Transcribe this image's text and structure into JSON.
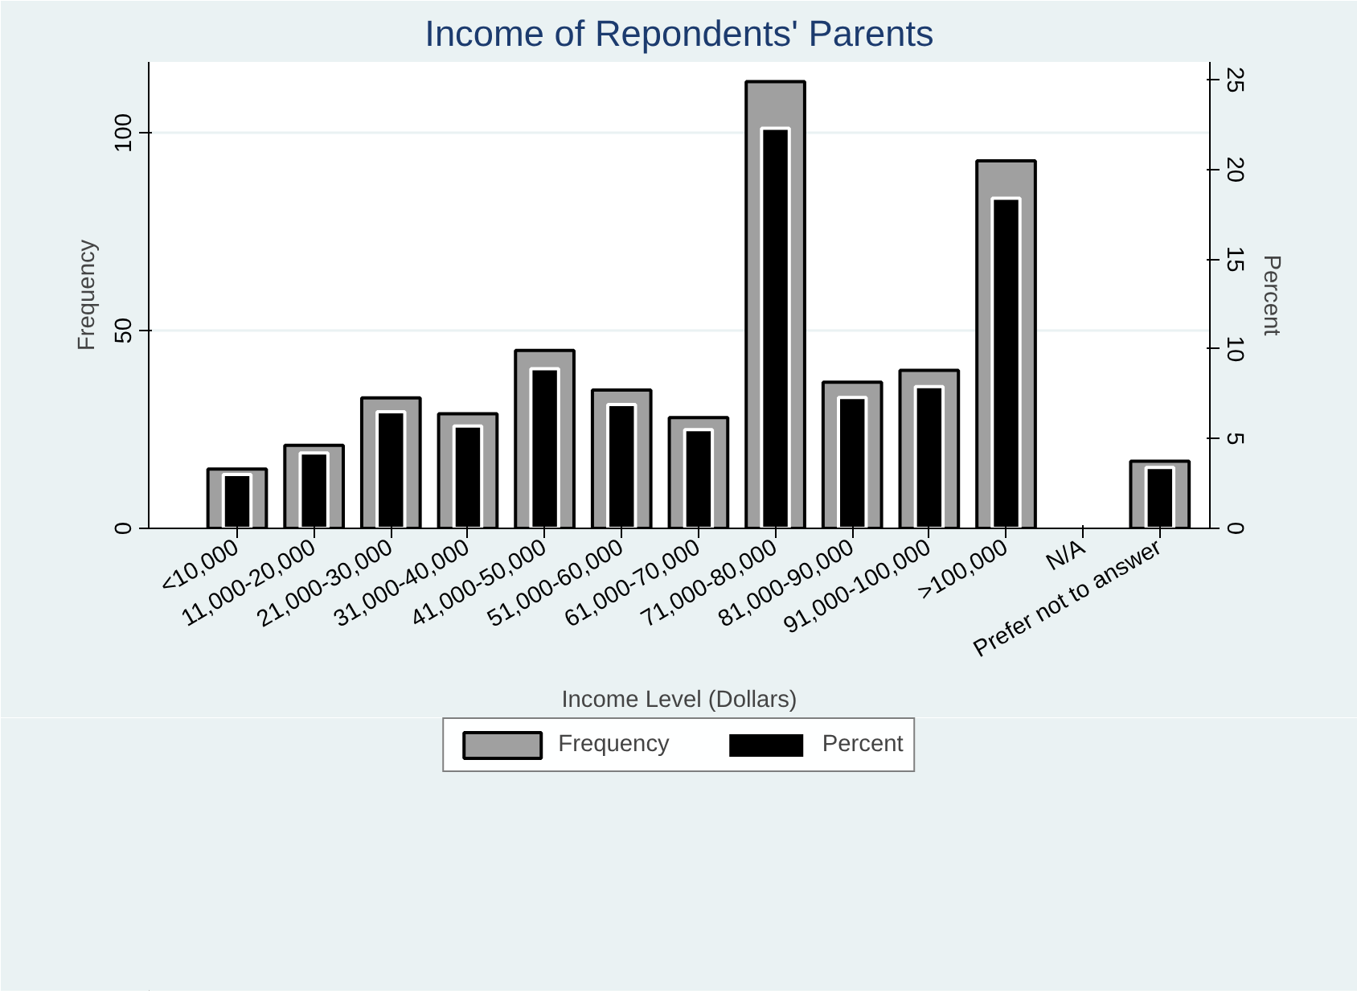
{
  "chart_data": {
    "type": "bar",
    "title": "Income of Repondents' Parents",
    "xlabel": "Income Level (Dollars)",
    "ylabel": "Frequency",
    "y2label": "Percent",
    "categories": [
      "<10,000",
      "11,000-20,000",
      "21,000-30,000",
      "31,000-40,000",
      "41,000-50,000",
      "51,000-60,000",
      "61,000-70,000",
      "71,000-80,000",
      "81,000-90,000",
      "91,000-100,000",
      ">100,000",
      "N/A",
      "Prefer not to answer"
    ],
    "series": [
      {
        "name": "Frequency",
        "color": "#a0a0a0",
        "values": [
          15,
          21,
          33,
          29,
          45,
          35,
          28,
          113,
          37,
          40,
          93,
          0,
          17
        ]
      },
      {
        "name": "Percent",
        "color": "#000000",
        "axis": "y2",
        "values": [
          3.0,
          4.2,
          6.5,
          5.7,
          8.9,
          6.9,
          5.5,
          22.3,
          7.3,
          7.9,
          18.4,
          0,
          3.4
        ]
      }
    ],
    "ylim": [
      0,
      118
    ],
    "yticks": [
      0,
      50,
      100
    ],
    "y2lim": [
      0,
      26
    ],
    "y2ticks": [
      0,
      5,
      10,
      15,
      20,
      25
    ],
    "grid": "y",
    "legend": "bottom"
  }
}
